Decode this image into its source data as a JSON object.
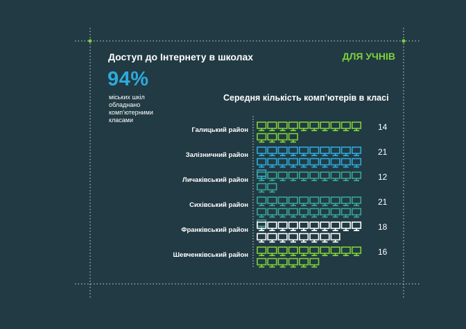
{
  "header": {
    "title": "Доступ до Інтернету в школах",
    "badge": "ДЛЯ УЧНІВ"
  },
  "stat": {
    "value": "94%",
    "description": "міських шкіл обладнано комп’ютерними класами"
  },
  "colors": {
    "background": "#213a43",
    "accent_green": "#7fd13b",
    "accent_blue": "#2eaadc",
    "teal": "#3aa698",
    "white": "#ffffff"
  },
  "chart_data": {
    "type": "bar",
    "title": "Середня кількість комп’ютерів в класі",
    "icon": "monitor-icon",
    "categories": [
      "Галицький район",
      "Залізничний район",
      "Личаківський район",
      "Сихівський район",
      "Франківський район",
      "Шевченківський район"
    ],
    "values": [
      14,
      21,
      12,
      21,
      18,
      16
    ],
    "icon_colors": [
      "#7fd13b",
      "#2eaadc",
      "#3aa698",
      "#3aa698",
      "#ffffff",
      "#7fd13b"
    ]
  }
}
